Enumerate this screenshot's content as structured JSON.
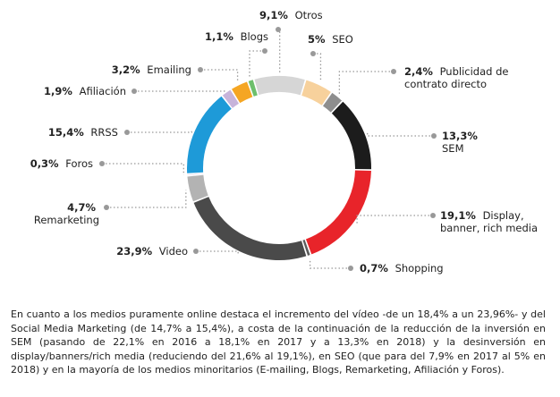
{
  "chart_data": {
    "type": "pie",
    "donut": true,
    "categories": [
      "Otros",
      "SEO",
      "Publicidad de contrato directo",
      "SEM",
      "Display, banner, rich media",
      "Shopping",
      "Video",
      "Remarketing",
      "Foros",
      "RRSS",
      "Afiliación",
      "Emailing",
      "Blogs"
    ],
    "values": [
      9.1,
      5,
      2.4,
      13.3,
      19.1,
      0.7,
      23.9,
      4.7,
      0.3,
      15.4,
      1.9,
      3.2,
      1.1
    ],
    "value_labels": [
      "9,1%",
      "5%",
      "2,4%",
      "13,3%",
      "19,1%",
      "0,7%",
      "23,9%",
      "4,7%",
      "0,3%",
      "15,4%",
      "1,9%",
      "3,2%",
      "1,1%"
    ],
    "colors": [
      "#d6d6d6",
      "#f7d19c",
      "#8e8e8e",
      "#1c1c1c",
      "#e8242a",
      "#5c5c5c",
      "#4a4a4a",
      "#b3b3b3",
      "#7a4ea0",
      "#1e9ad8",
      "#c7b4da",
      "#f5a623",
      "#6dbf6c"
    ]
  },
  "paragraph": "En cuanto a los medios puramente online destaca el incremento del vídeo -de un 18,4% a un 23,96%- y del Social Media Marketing (de 14,7% a 15,4%), a costa de la continuación de la reducción de la inversión en SEM (pasando de 22,1% en 2016 a 18,1% en 2017 y a 13,3% en 2018) y la desinversión en display/banners/rich media (reduciendo del 21,6% al 19,1%), en SEO (que para del 7,9% en 2017 al 5% en 2018) y en la mayoría de los medios minoritarios (E-mailing, Blogs, Remarketing, Afiliación y Foros)."
}
